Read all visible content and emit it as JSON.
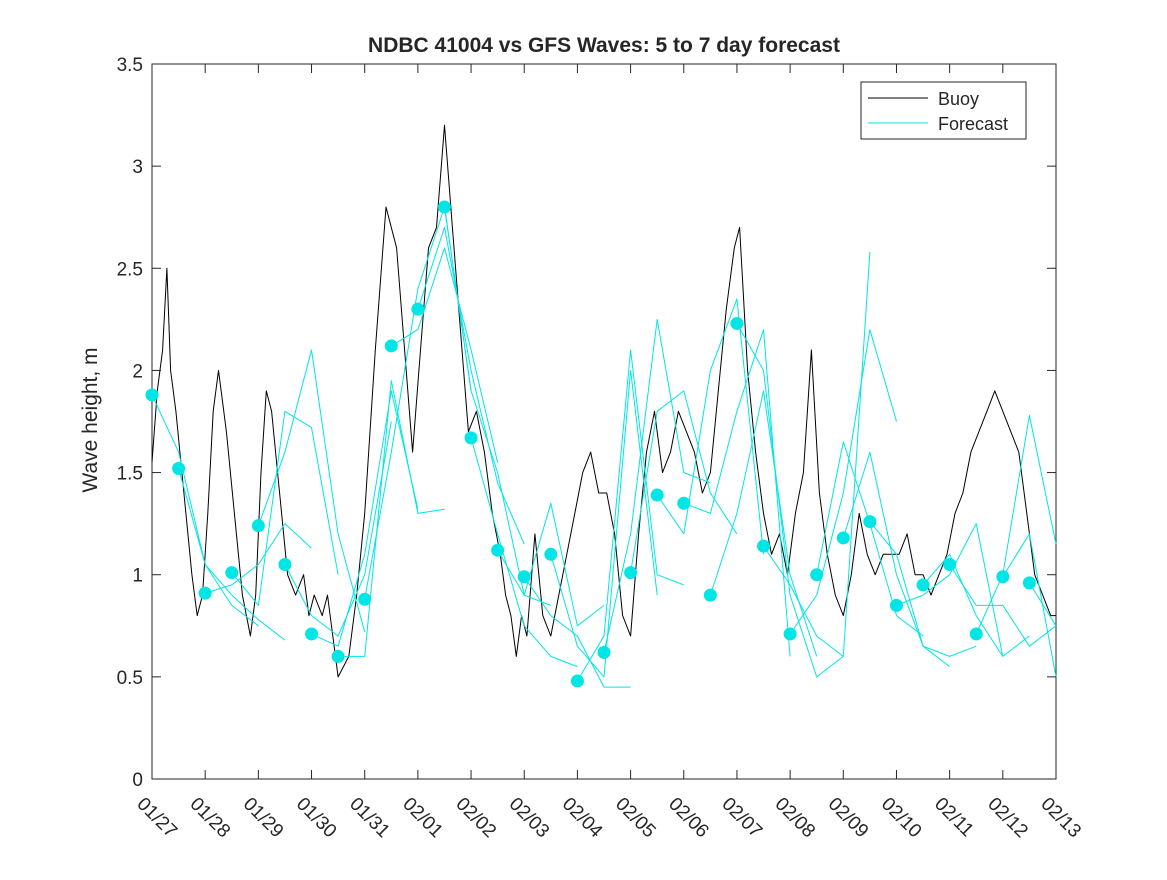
{
  "chart_data": {
    "type": "line",
    "title": "NDBC 41004 vs GFS Waves: 5 to 7 day forecast",
    "xlabel": "",
    "ylabel": "Wave height, m",
    "xlim": [
      0,
      17
    ],
    "ylim": [
      0,
      3.5
    ],
    "yticks": [
      0,
      0.5,
      1,
      1.5,
      2,
      2.5,
      3,
      3.5
    ],
    "ytick_labels": [
      "0",
      "0.5",
      "1",
      "1.5",
      "2",
      "2.5",
      "3",
      "3.5"
    ],
    "xtick_labels": [
      "01/27",
      "01/28",
      "01/29",
      "01/30",
      "01/31",
      "02/01",
      "02/02",
      "02/03",
      "02/04",
      "02/05",
      "02/06",
      "02/07",
      "02/08",
      "02/09",
      "02/10",
      "02/11",
      "02/12",
      "02/13"
    ],
    "legend": {
      "position": "top-right",
      "entries": [
        {
          "label": "Buoy",
          "color": "#000000"
        },
        {
          "label": "Forecast",
          "color": "#00e5e5"
        }
      ]
    },
    "colors": {
      "buoy": "#000000",
      "forecast": "#00e5e5",
      "marker": "#00e5e5",
      "axis": "#262626"
    },
    "series": [
      {
        "name": "Buoy",
        "x": [
          0,
          0.1,
          0.2,
          0.28,
          0.35,
          0.45,
          0.6,
          0.75,
          0.85,
          0.95,
          1.05,
          1.15,
          1.25,
          1.4,
          1.55,
          1.7,
          1.85,
          1.95,
          2.05,
          2.15,
          2.25,
          2.4,
          2.55,
          2.7,
          2.85,
          2.95,
          3.05,
          3.2,
          3.3,
          3.5,
          3.7,
          3.85,
          4.0,
          4.2,
          4.4,
          4.6,
          4.75,
          4.9,
          5.05,
          5.2,
          5.35,
          5.5,
          5.65,
          5.8,
          5.95,
          6.1,
          6.25,
          6.4,
          6.55,
          6.65,
          6.75,
          6.85,
          6.95,
          7.05,
          7.2,
          7.35,
          7.5,
          7.65,
          7.8,
          7.95,
          8.1,
          8.25,
          8.4,
          8.55,
          8.7,
          8.85,
          9.0,
          9.15,
          9.3,
          9.45,
          9.6,
          9.75,
          9.9,
          10.05,
          10.2,
          10.35,
          10.5,
          10.65,
          10.8,
          10.95,
          11.05,
          11.2,
          11.35,
          11.5,
          11.65,
          11.8,
          11.95,
          12.1,
          12.25,
          12.4,
          12.55,
          12.7,
          12.85,
          13.0,
          13.15,
          13.3,
          13.45,
          13.6,
          13.75,
          13.9,
          14.05,
          14.2,
          14.35,
          14.5,
          14.65,
          14.8,
          14.95,
          15.1,
          15.25,
          15.4,
          15.55,
          15.7,
          15.85,
          16.0,
          16.15,
          16.3,
          16.45,
          16.6,
          16.75,
          16.9,
          17.0
        ],
        "y": [
          1.55,
          1.9,
          2.1,
          2.5,
          2.0,
          1.8,
          1.4,
          1.0,
          0.8,
          0.9,
          1.3,
          1.8,
          2.0,
          1.7,
          1.3,
          0.9,
          0.7,
          0.9,
          1.5,
          1.9,
          1.8,
          1.4,
          1.0,
          0.9,
          1.0,
          0.8,
          0.9,
          0.8,
          0.9,
          0.5,
          0.6,
          0.9,
          1.3,
          2.1,
          2.8,
          2.6,
          2.1,
          1.6,
          2.1,
          2.6,
          2.7,
          3.2,
          2.7,
          2.2,
          1.7,
          1.8,
          1.6,
          1.3,
          1.1,
          0.9,
          0.8,
          0.6,
          0.8,
          0.7,
          1.2,
          0.8,
          0.7,
          0.9,
          1.1,
          1.3,
          1.5,
          1.6,
          1.4,
          1.4,
          1.2,
          0.8,
          0.7,
          1.2,
          1.6,
          1.8,
          1.5,
          1.6,
          1.8,
          1.7,
          1.6,
          1.4,
          1.5,
          1.9,
          2.3,
          2.6,
          2.7,
          2.0,
          1.6,
          1.3,
          1.1,
          1.2,
          1.0,
          1.3,
          1.5,
          2.1,
          1.4,
          1.1,
          0.9,
          0.8,
          1.0,
          1.3,
          1.1,
          1.0,
          1.1,
          1.1,
          1.1,
          1.2,
          1.0,
          1.0,
          0.9,
          1.0,
          1.1,
          1.3,
          1.4,
          1.6,
          1.7,
          1.8,
          1.9,
          1.8,
          1.7,
          1.6,
          1.3,
          1.0,
          0.9,
          0.8,
          0.8
        ]
      },
      {
        "name": "Forecast run 1",
        "x": [
          0,
          0.5,
          1.0,
          1.5,
          2.0
        ],
        "y": [
          1.88,
          1.6,
          1.05,
          0.85,
          0.75
        ]
      },
      {
        "name": "Forecast run 2",
        "x": [
          0.5,
          1.0,
          1.5,
          2.0,
          2.5
        ],
        "y": [
          1.52,
          1.05,
          0.9,
          0.78,
          0.68
        ]
      },
      {
        "name": "Forecast run 3",
        "x": [
          1.0,
          1.5,
          2.0,
          2.5,
          3.0
        ],
        "y": [
          0.91,
          0.95,
          1.05,
          1.25,
          1.13
        ]
      },
      {
        "name": "Forecast run 4",
        "x": [
          1.5,
          2.0,
          2.5,
          3.0,
          3.5
        ],
        "y": [
          1.01,
          0.85,
          1.8,
          1.72,
          1.0
        ]
      },
      {
        "name": "Forecast run 5",
        "x": [
          2.0,
          2.5,
          3.0,
          3.5,
          4.0
        ],
        "y": [
          1.24,
          1.6,
          2.1,
          1.2,
          0.72
        ]
      },
      {
        "name": "Forecast run 6",
        "x": [
          2.5,
          3.0,
          3.5,
          4.0,
          4.5
        ],
        "y": [
          1.05,
          0.8,
          0.7,
          1.0,
          1.75
        ]
      },
      {
        "name": "Forecast run 7",
        "x": [
          3.0,
          3.5,
          4.0,
          4.5,
          5.0
        ],
        "y": [
          0.71,
          0.65,
          1.1,
          1.9,
          1.32
        ]
      },
      {
        "name": "Forecast run 8",
        "x": [
          3.5,
          4.0,
          4.5,
          5.0,
          5.5
        ],
        "y": [
          0.6,
          0.6,
          1.95,
          1.3,
          1.32
        ]
      },
      {
        "name": "Forecast run 9",
        "x": [
          4.0,
          4.5,
          5.0,
          5.5,
          6.0
        ],
        "y": [
          0.88,
          1.6,
          2.4,
          2.8,
          1.9
        ]
      },
      {
        "name": "Forecast run 10",
        "x": [
          4.5,
          5.0,
          5.5,
          6.0,
          6.5
        ],
        "y": [
          2.12,
          2.2,
          2.6,
          2.1,
          1.55
        ]
      },
      {
        "name": "Forecast run 11",
        "x": [
          5.0,
          5.5,
          6.0,
          6.5,
          7.0
        ],
        "y": [
          2.3,
          2.7,
          2.0,
          1.45,
          1.15
        ]
      },
      {
        "name": "Forecast run 12",
        "x": [
          5.5,
          6.0,
          6.5,
          7.0,
          7.5
        ],
        "y": [
          2.8,
          1.9,
          1.5,
          0.9,
          0.85
        ]
      },
      {
        "name": "Forecast run 13",
        "x": [
          6.0,
          6.5,
          7.0,
          7.5,
          8.0
        ],
        "y": [
          1.67,
          1.2,
          0.75,
          0.6,
          0.55
        ]
      },
      {
        "name": "Forecast run 14",
        "x": [
          6.5,
          7.0,
          7.5,
          8.0,
          8.5
        ],
        "y": [
          1.12,
          0.9,
          1.35,
          0.75,
          0.85
        ]
      },
      {
        "name": "Forecast run 15",
        "x": [
          7.0,
          7.5,
          8.0,
          8.5,
          9.0
        ],
        "y": [
          0.99,
          0.8,
          0.7,
          0.45,
          0.45
        ]
      },
      {
        "name": "Forecast run 16",
        "x": [
          7.5,
          8.0,
          8.5,
          9.0,
          9.5
        ],
        "y": [
          1.1,
          0.65,
          0.5,
          2.0,
          0.9
        ]
      },
      {
        "name": "Forecast run 17",
        "x": [
          8.0,
          8.5,
          9.0,
          9.5,
          10.0
        ],
        "y": [
          0.48,
          0.7,
          2.1,
          1.0,
          0.95
        ]
      },
      {
        "name": "Forecast run 18",
        "x": [
          8.5,
          9.0,
          9.5,
          10.0,
          10.5
        ],
        "y": [
          0.62,
          1.2,
          2.25,
          1.5,
          1.45
        ]
      },
      {
        "name": "Forecast run 19",
        "x": [
          9.0,
          9.5,
          10.0,
          10.5,
          11.0
        ],
        "y": [
          1.01,
          1.8,
          1.9,
          1.4,
          1.2
        ]
      },
      {
        "name": "Forecast run 20",
        "x": [
          9.5,
          10.0,
          10.5,
          11.0,
          11.5
        ],
        "y": [
          1.39,
          1.2,
          2.0,
          2.35,
          1.1
        ]
      },
      {
        "name": "Forecast run 21",
        "x": [
          10.0,
          10.5,
          11.0,
          11.5,
          12.0
        ],
        "y": [
          1.35,
          1.3,
          1.8,
          2.2,
          0.6
        ]
      },
      {
        "name": "Forecast run 22",
        "x": [
          10.5,
          11.0,
          11.5,
          12.0,
          12.5
        ],
        "y": [
          0.9,
          1.3,
          1.9,
          1.0,
          0.6
        ]
      },
      {
        "name": "Forecast run 23",
        "x": [
          11.0,
          11.5,
          12.0,
          12.5,
          13.0
        ],
        "y": [
          2.23,
          2.0,
          0.9,
          0.5,
          0.6
        ]
      },
      {
        "name": "Forecast run 24",
        "x": [
          11.5,
          12.0,
          12.5,
          13.0,
          13.5
        ],
        "y": [
          1.14,
          0.95,
          0.7,
          0.6,
          2.58
        ]
      },
      {
        "name": "Forecast run 25",
        "x": [
          12.0,
          12.5,
          13.0,
          13.5,
          14.0
        ],
        "y": [
          0.71,
          0.9,
          1.4,
          2.2,
          1.75
        ]
      },
      {
        "name": "Forecast run 26",
        "x": [
          12.5,
          13.0,
          13.5,
          14.0,
          14.5
        ],
        "y": [
          1.0,
          1.65,
          1.25,
          0.8,
          0.7
        ]
      },
      {
        "name": "Forecast run 27",
        "x": [
          13.0,
          13.5,
          14.0,
          14.5,
          15.0
        ],
        "y": [
          1.18,
          1.6,
          1.0,
          0.65,
          0.55
        ]
      },
      {
        "name": "Forecast run 28",
        "x": [
          13.5,
          14.0,
          14.5,
          15.0,
          15.5
        ],
        "y": [
          1.26,
          1.1,
          0.65,
          0.6,
          0.65
        ]
      },
      {
        "name": "Forecast run 29",
        "x": [
          14.0,
          14.5,
          15.0,
          15.5,
          16.0
        ],
        "y": [
          0.85,
          0.9,
          1.0,
          1.25,
          0.6
        ]
      },
      {
        "name": "Forecast run 30",
        "x": [
          14.5,
          15.0,
          15.5,
          16.0,
          16.5
        ],
        "y": [
          0.95,
          1.1,
          0.8,
          0.6,
          0.7
        ]
      },
      {
        "name": "Forecast run 31",
        "x": [
          15.0,
          15.5,
          16.0,
          16.5,
          17.0
        ],
        "y": [
          1.05,
          0.85,
          0.85,
          0.65,
          0.75
        ]
      },
      {
        "name": "Forecast run 32",
        "x": [
          15.5,
          16.0,
          16.5,
          17.0
        ],
        "y": [
          0.71,
          1.0,
          1.78,
          1.15
        ]
      },
      {
        "name": "Forecast run 33",
        "x": [
          16.0,
          16.5,
          17.0
        ],
        "y": [
          0.99,
          1.2,
          0.5
        ]
      },
      {
        "name": "Forecast run 34",
        "x": [
          16.5,
          17.0
        ],
        "y": [
          0.96,
          0.75
        ]
      }
    ],
    "markers": {
      "name": "Forecast start points",
      "x": [
        0,
        0.5,
        1.0,
        1.5,
        2.0,
        2.5,
        3.0,
        3.5,
        4.0,
        4.5,
        5.0,
        5.5,
        6.0,
        6.5,
        7.0,
        7.5,
        8.0,
        8.5,
        9.0,
        9.5,
        10.0,
        10.5,
        11.0,
        11.5,
        12.0,
        12.5,
        13.0,
        13.5,
        14.0,
        14.5,
        15.0,
        15.5,
        16.0,
        16.5
      ],
      "y": [
        1.88,
        1.52,
        0.91,
        1.01,
        1.24,
        1.05,
        0.71,
        0.6,
        0.88,
        2.12,
        2.3,
        2.8,
        1.67,
        1.12,
        0.99,
        1.1,
        0.48,
        0.62,
        1.01,
        1.39,
        1.35,
        0.9,
        2.23,
        1.14,
        0.71,
        1.0,
        1.18,
        1.26,
        0.85,
        0.95,
        1.05,
        0.71,
        0.99,
        0.96
      ]
    }
  }
}
